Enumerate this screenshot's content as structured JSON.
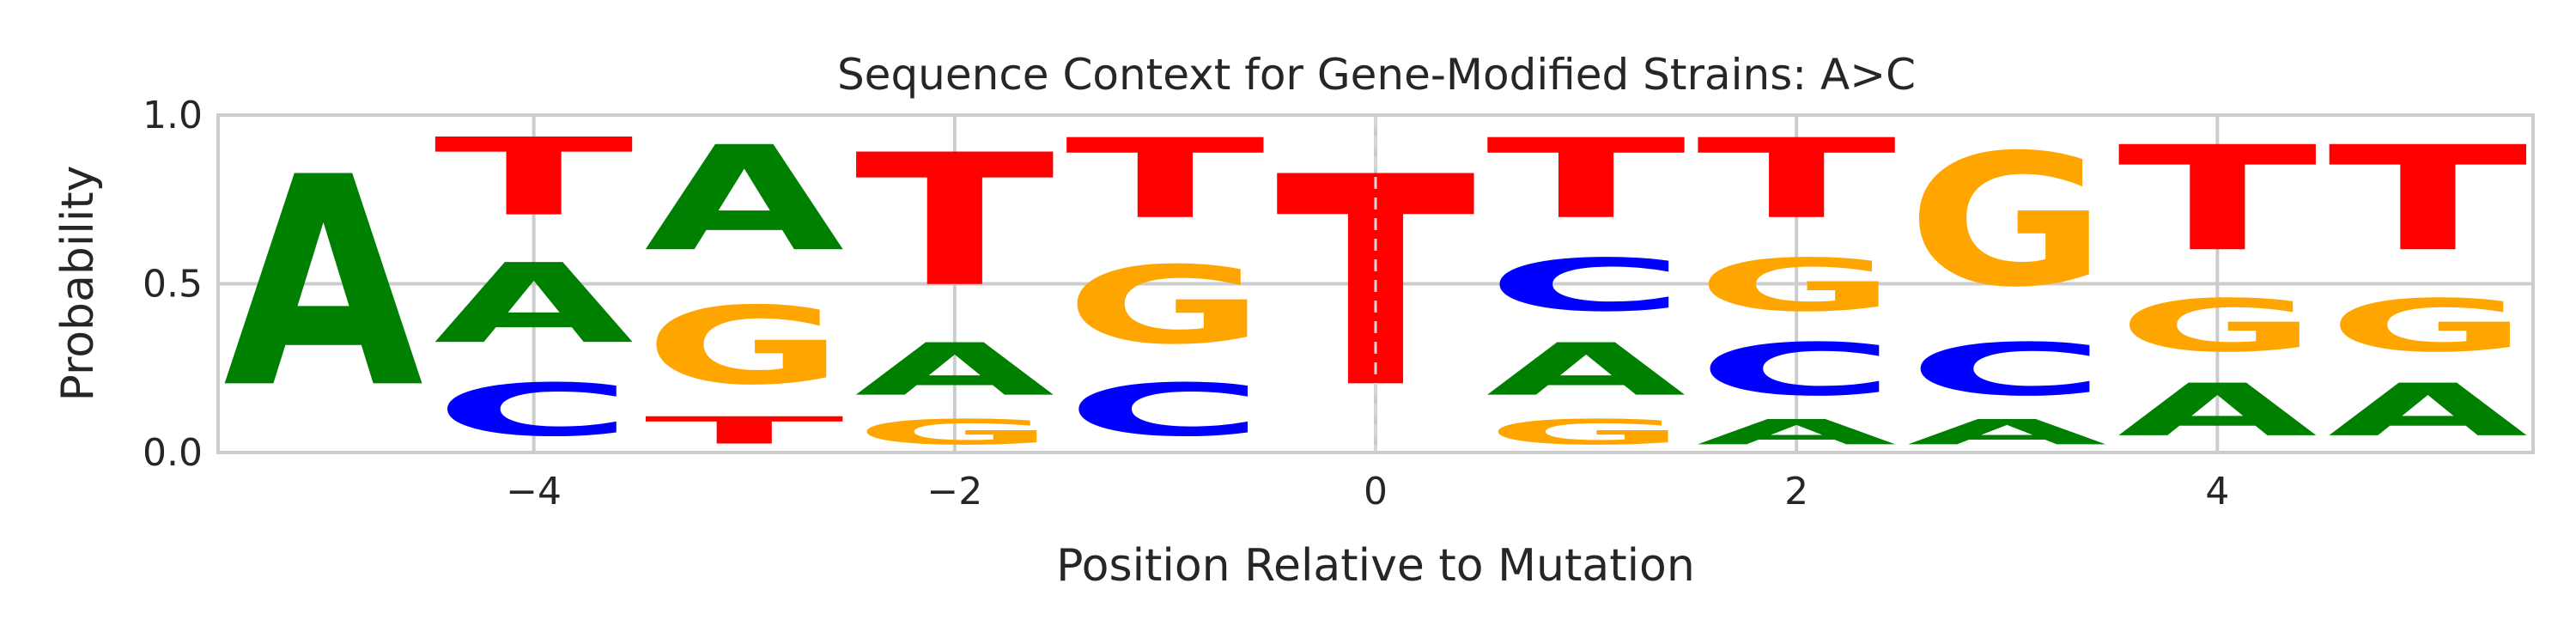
{
  "chart_data": {
    "type": "sequence-logo",
    "title": "Sequence Context for Gene-Modified Strains: A>C",
    "xlabel": "Position Relative to Mutation",
    "ylabel": "Probability",
    "xlim": [
      -5.5,
      5.5
    ],
    "ylim": [
      0,
      1
    ],
    "xticks": [
      -4,
      -2,
      0,
      2,
      4
    ],
    "xtick_labels": [
      "−4",
      "−2",
      "0",
      "2",
      "4"
    ],
    "yticks": [
      0,
      0.5,
      1
    ],
    "ytick_labels": [
      "0.0",
      "0.5",
      "1.0"
    ],
    "grid": true,
    "mutation_line": 0,
    "colors": {
      "A": "#008000",
      "C": "#0000ff",
      "G": "#ffa500",
      "T": "#ff0000"
    },
    "positions": [
      {
        "x": -5,
        "stack": [
          {
            "base": "A",
            "p": 1.0
          }
        ]
      },
      {
        "x": -4,
        "stack": [
          {
            "base": "C",
            "p": 0.25
          },
          {
            "base": "A",
            "p": 0.38
          },
          {
            "base": "T",
            "p": 0.37
          }
        ]
      },
      {
        "x": -3,
        "stack": [
          {
            "base": "T",
            "p": 0.13
          },
          {
            "base": "G",
            "p": 0.37
          },
          {
            "base": "A",
            "p": 0.5
          }
        ]
      },
      {
        "x": -2,
        "stack": [
          {
            "base": "G",
            "p": 0.12
          },
          {
            "base": "A",
            "p": 0.25
          },
          {
            "base": "T",
            "p": 0.63
          }
        ]
      },
      {
        "x": -1,
        "stack": [
          {
            "base": "C",
            "p": 0.25
          },
          {
            "base": "G",
            "p": 0.37
          },
          {
            "base": "T",
            "p": 0.38
          }
        ]
      },
      {
        "x": 0,
        "stack": [
          {
            "base": "T",
            "p": 1.0
          }
        ]
      },
      {
        "x": 1,
        "stack": [
          {
            "base": "G",
            "p": 0.12
          },
          {
            "base": "A",
            "p": 0.25
          },
          {
            "base": "C",
            "p": 0.25
          },
          {
            "base": "T",
            "p": 0.38
          }
        ]
      },
      {
        "x": 2,
        "stack": [
          {
            "base": "A",
            "p": 0.12
          },
          {
            "base": "C",
            "p": 0.25
          },
          {
            "base": "G",
            "p": 0.25
          },
          {
            "base": "T",
            "p": 0.38
          }
        ]
      },
      {
        "x": 3,
        "stack": [
          {
            "base": "A",
            "p": 0.12
          },
          {
            "base": "C",
            "p": 0.25
          },
          {
            "base": "G",
            "p": 0.63
          }
        ]
      },
      {
        "x": 4,
        "stack": [
          {
            "base": "A",
            "p": 0.25
          },
          {
            "base": "G",
            "p": 0.25
          },
          {
            "base": "T",
            "p": 0.5
          }
        ]
      },
      {
        "x": 5,
        "stack": [
          {
            "base": "A",
            "p": 0.25
          },
          {
            "base": "G",
            "p": 0.25
          },
          {
            "base": "T",
            "p": 0.5
          }
        ]
      }
    ]
  }
}
